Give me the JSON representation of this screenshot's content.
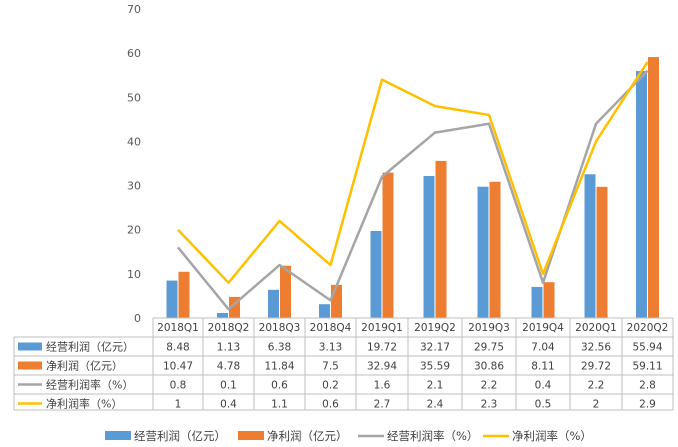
{
  "chart_data": {
    "type": "bar",
    "categories": [
      "2018Q1",
      "2018Q2",
      "2018Q3",
      "2018Q4",
      "2019Q1",
      "2019Q2",
      "2019Q3",
      "2019Q4",
      "2020Q1",
      "2020Q2"
    ],
    "ylim": [
      0,
      70
    ],
    "yticks": [
      0,
      10,
      20,
      30,
      40,
      50,
      60,
      70
    ],
    "grid": false,
    "legend_position": "bottom",
    "series": [
      {
        "name": "经营利润（亿元）",
        "kind": "bar",
        "color": "#5B9BD5",
        "labels": [
          "8.48",
          "1.13",
          "6.38",
          "3.13",
          "19.72",
          "32.17",
          "29.75",
          "7.04",
          "32.56",
          "55.94"
        ],
        "values": [
          8.48,
          1.13,
          6.38,
          3.13,
          19.72,
          32.17,
          29.75,
          7.04,
          32.56,
          55.94
        ]
      },
      {
        "name": "净利润（亿元）",
        "kind": "bar",
        "color": "#ED7D31",
        "labels": [
          "10.47",
          "4.78",
          "11.84",
          "7.5",
          "32.94",
          "35.59",
          "30.86",
          "8.11",
          "29.72",
          "59.11"
        ],
        "values": [
          10.47,
          4.78,
          11.84,
          7.5,
          32.94,
          35.59,
          30.86,
          8.11,
          29.72,
          59.11
        ]
      },
      {
        "name": "经营利润率（%）",
        "kind": "line",
        "color": "#A5A5A5",
        "labels": [
          "0.8",
          "0.1",
          "0.6",
          "0.2",
          "1.6",
          "2.1",
          "2.2",
          "0.4",
          "2.2",
          "2.8"
        ],
        "values": [
          0.8,
          0.1,
          0.6,
          0.2,
          1.6,
          2.1,
          2.2,
          0.4,
          2.2,
          2.8
        ]
      },
      {
        "name": "净利润率（%）",
        "kind": "line",
        "color": "#FFC000",
        "labels": [
          "1",
          "0.4",
          "1.1",
          "0.6",
          "2.7",
          "2.4",
          "2.3",
          "0.5",
          "2",
          "2.9"
        ],
        "values": [
          1,
          0.4,
          1.1,
          0.6,
          2.7,
          2.4,
          2.3,
          0.5,
          2,
          2.9
        ]
      }
    ]
  }
}
